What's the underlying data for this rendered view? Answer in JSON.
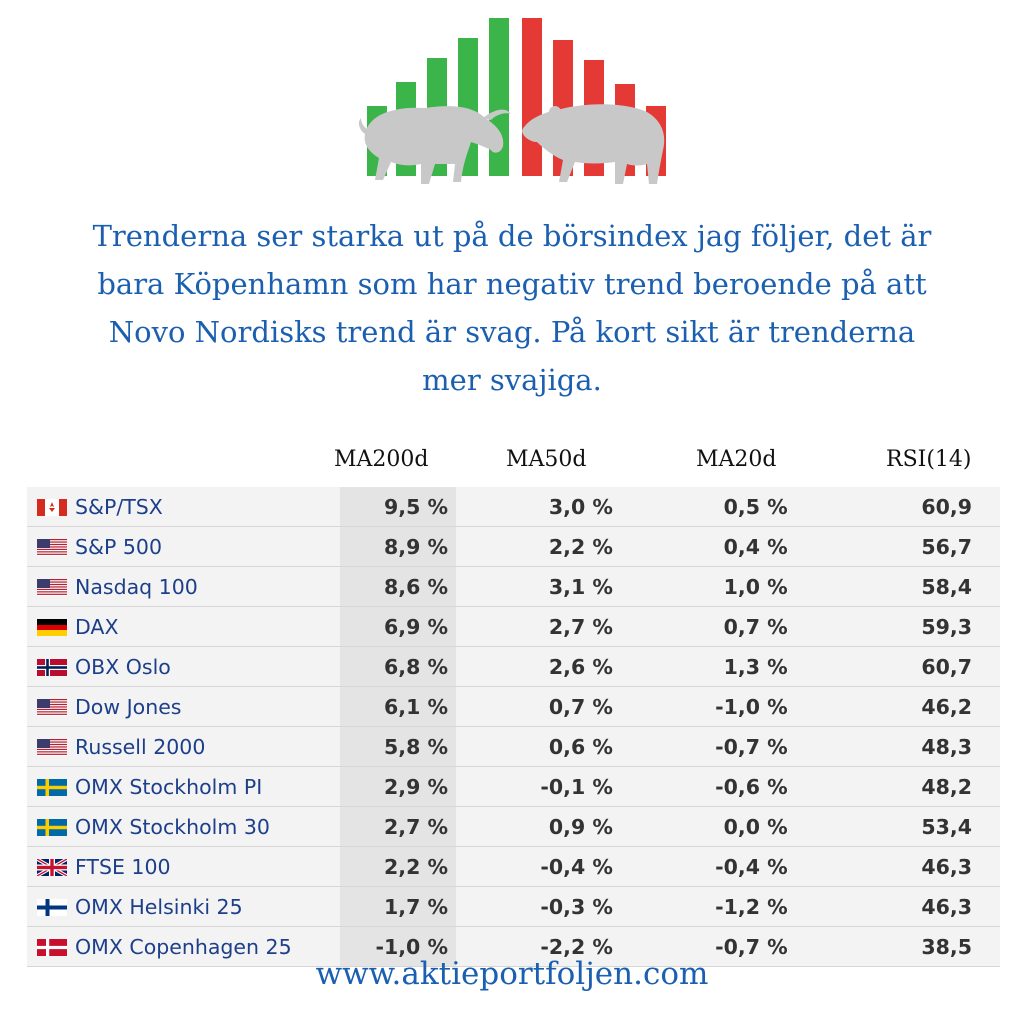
{
  "headline": [
    "Trenderna ser starka ut på de börsindex jag följer, det är",
    "bara Köpenhamn som har negativ trend beroende på att",
    "Novo Nordisks trend är svag. På kort sikt är trenderna",
    "mer svajiga."
  ],
  "columns": [
    "MA200d",
    "MA50d",
    "MA20d",
    "RSI(14)"
  ],
  "colors": {
    "accent": "#1b5fb0",
    "up": "#3bb54a",
    "down": "#e53935",
    "animal": "#c8c8c8"
  },
  "logo": {
    "icons": [
      "bull-icon",
      "bear-icon"
    ],
    "bars": [
      "green",
      "green",
      "green",
      "green",
      "green",
      "red",
      "red",
      "red",
      "red",
      "red"
    ]
  },
  "rows": [
    {
      "flag": "ca",
      "name": "S&P/TSX",
      "ma200": "9,5 %",
      "ma50": "3,0 %",
      "ma20": "0,5 %",
      "rsi": "60,9"
    },
    {
      "flag": "us",
      "name": "S&P 500",
      "ma200": "8,9 %",
      "ma50": "2,2 %",
      "ma20": "0,4 %",
      "rsi": "56,7"
    },
    {
      "flag": "us",
      "name": "Nasdaq 100",
      "ma200": "8,6 %",
      "ma50": "3,1 %",
      "ma20": "1,0 %",
      "rsi": "58,4"
    },
    {
      "flag": "de",
      "name": "DAX",
      "ma200": "6,9 %",
      "ma50": "2,7 %",
      "ma20": "0,7 %",
      "rsi": "59,3"
    },
    {
      "flag": "no",
      "name": "OBX Oslo",
      "ma200": "6,8 %",
      "ma50": "2,6 %",
      "ma20": "1,3 %",
      "rsi": "60,7"
    },
    {
      "flag": "us",
      "name": "Dow Jones",
      "ma200": "6,1 %",
      "ma50": "0,7 %",
      "ma20": "-1,0 %",
      "rsi": "46,2"
    },
    {
      "flag": "us",
      "name": "Russell 2000",
      "ma200": "5,8 %",
      "ma50": "0,6 %",
      "ma20": "-0,7 %",
      "rsi": "48,3"
    },
    {
      "flag": "se",
      "name": "OMX Stockholm PI",
      "ma200": "2,9 %",
      "ma50": "-0,1 %",
      "ma20": "-0,6 %",
      "rsi": "48,2"
    },
    {
      "flag": "se",
      "name": "OMX Stockholm 30",
      "ma200": "2,7 %",
      "ma50": "0,9 %",
      "ma20": "0,0 %",
      "rsi": "53,4"
    },
    {
      "flag": "gb",
      "name": "FTSE 100",
      "ma200": "2,2 %",
      "ma50": "-0,4 %",
      "ma20": "-0,4 %",
      "rsi": "46,3"
    },
    {
      "flag": "fi",
      "name": "OMX Helsinki 25",
      "ma200": "1,7 %",
      "ma50": "-0,3 %",
      "ma20": "-1,2 %",
      "rsi": "46,3"
    },
    {
      "flag": "dk",
      "name": "OMX Copenhagen 25",
      "ma200": "-1,0 %",
      "ma50": "-2,2 %",
      "ma20": "-0,7 %",
      "rsi": "38,5"
    }
  ],
  "footer": "www.aktieportfoljen.com"
}
